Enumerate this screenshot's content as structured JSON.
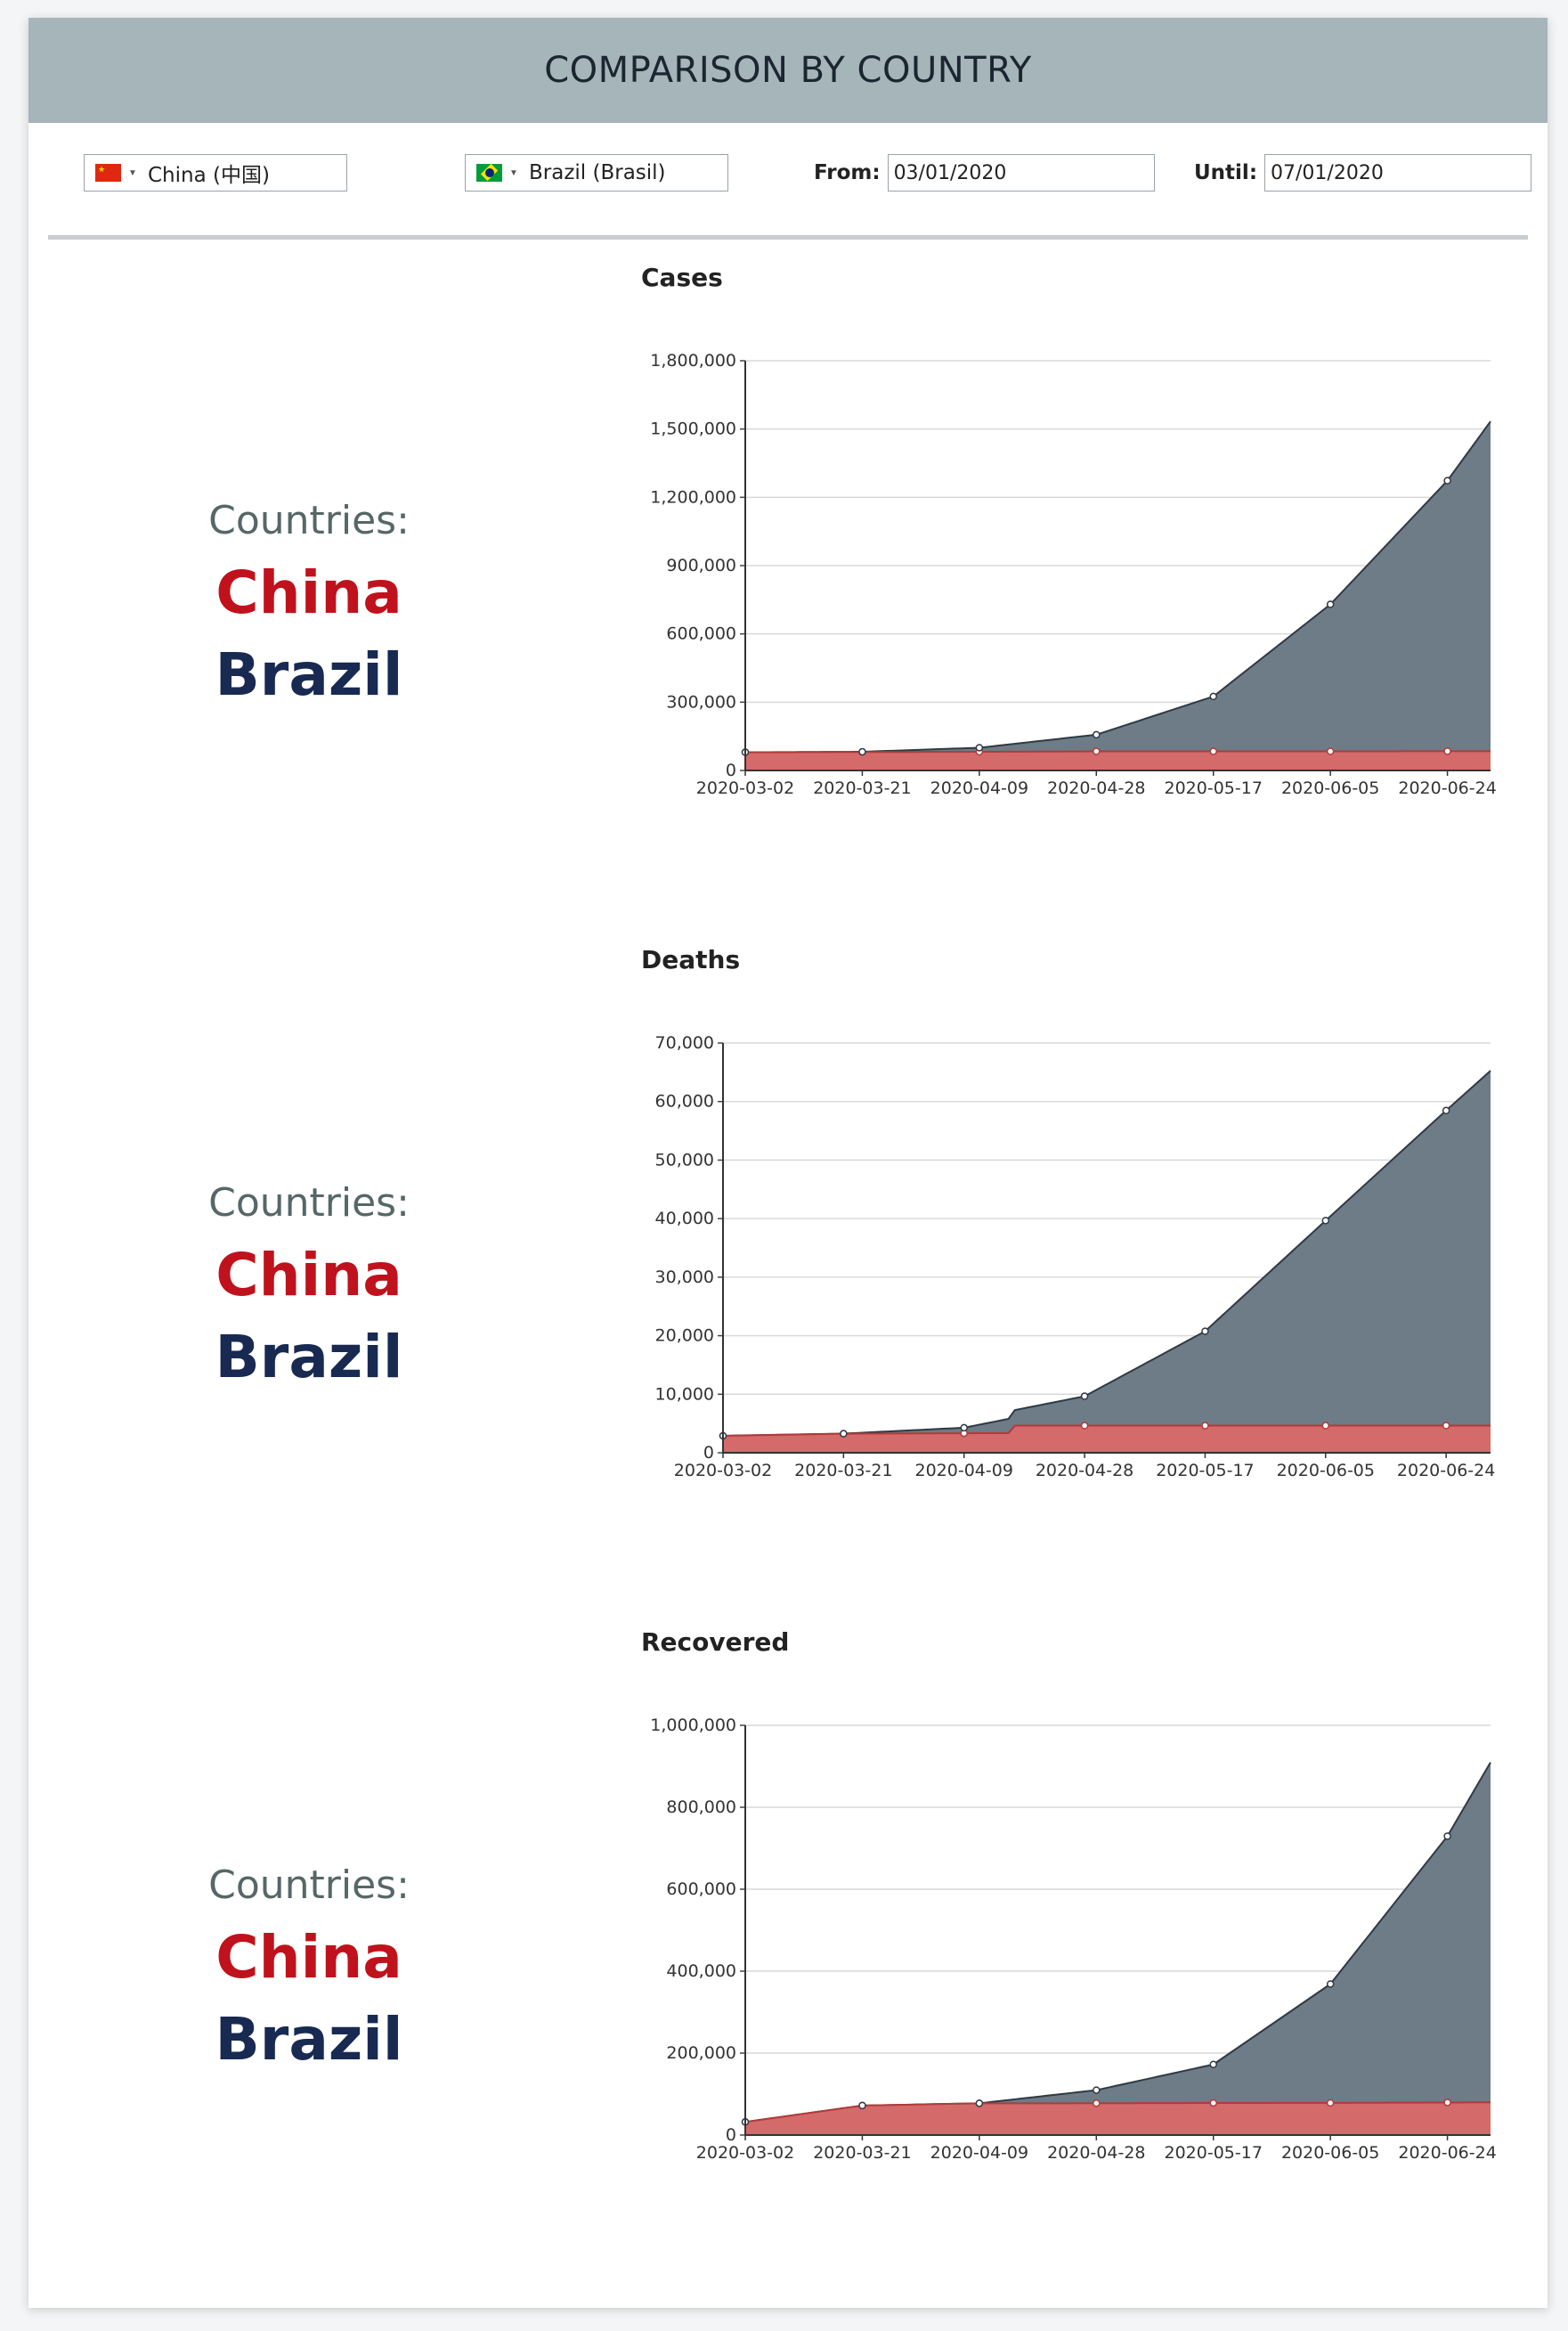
{
  "header": {
    "title": "COMPARISON BY COUNTRY"
  },
  "controls": {
    "country1": {
      "label": "China (中国)",
      "flag": "cn"
    },
    "country2": {
      "label": "Brazil (Brasil)",
      "flag": "br"
    },
    "from": {
      "label": "From:",
      "value": "03/01/2020"
    },
    "until": {
      "label": "Until:",
      "value": "07/01/2020"
    }
  },
  "colors": {
    "china": "#c0121c",
    "brazil": "#182a52",
    "china_fill": "#d46a6a",
    "brazil_fill": "#6a7985"
  },
  "sections": [
    {
      "countries_label": "Countries:",
      "country1": "China",
      "country2": "Brazil"
    },
    {
      "countries_label": "Countries:",
      "country1": "China",
      "country2": "Brazil"
    },
    {
      "countries_label": "Countries:",
      "country1": "China",
      "country2": "Brazil"
    }
  ],
  "chart_data": [
    {
      "type": "area",
      "title": "Cases",
      "xlabel": "",
      "ylabel": "",
      "x_ticks": [
        "2020-03-02",
        "2020-03-21",
        "2020-04-09",
        "2020-04-28",
        "2020-05-17",
        "2020-06-05",
        "2020-06-24"
      ],
      "x_start": "2020-03-02",
      "x_end": "2020-07-01",
      "ylim": [
        0,
        1800000
      ],
      "y_ticks": [
        0,
        300000,
        600000,
        900000,
        1200000,
        1500000,
        1800000
      ],
      "y_tick_labels": [
        "0",
        "300,000",
        "600,000",
        "900,000",
        "1,200,000",
        "1,500,000",
        "1,800,000"
      ],
      "grid": true,
      "stacked": true,
      "series": [
        {
          "name": "China",
          "color": "#d46a6a",
          "points": [
            [
              "2020-03-02",
              80000
            ],
            [
              "2020-03-21",
              81000
            ],
            [
              "2020-04-09",
              82000
            ],
            [
              "2020-04-28",
              84000
            ],
            [
              "2020-05-17",
              84000
            ],
            [
              "2020-06-05",
              84000
            ],
            [
              "2020-06-24",
              84600
            ],
            [
              "2020-07-01",
              84800
            ]
          ]
        },
        {
          "name": "Brazil",
          "color": "#6a7985",
          "points": [
            [
              "2020-03-02",
              2
            ],
            [
              "2020-03-21",
              1128
            ],
            [
              "2020-04-09",
              17857
            ],
            [
              "2020-04-28",
              73235
            ],
            [
              "2020-05-17",
              241080
            ],
            [
              "2020-06-05",
              645771
            ],
            [
              "2020-06-24",
              1188631
            ],
            [
              "2020-07-01",
              1448753
            ]
          ]
        }
      ]
    },
    {
      "type": "area",
      "title": "Deaths",
      "xlabel": "",
      "ylabel": "",
      "x_ticks": [
        "2020-03-02",
        "2020-03-21",
        "2020-04-09",
        "2020-04-28",
        "2020-05-17",
        "2020-06-05",
        "2020-06-24"
      ],
      "x_start": "2020-03-02",
      "x_end": "2020-07-01",
      "ylim": [
        0,
        70000
      ],
      "y_ticks": [
        0,
        10000,
        20000,
        30000,
        40000,
        50000,
        60000,
        70000
      ],
      "y_tick_labels": [
        "0",
        "10,000",
        "20,000",
        "30,000",
        "40,000",
        "50,000",
        "60,000",
        "70,000"
      ],
      "grid": true,
      "stacked": true,
      "series": [
        {
          "name": "China",
          "color": "#d46a6a",
          "points": [
            [
              "2020-03-02",
              2900
            ],
            [
              "2020-03-21",
              3255
            ],
            [
              "2020-04-09",
              3337
            ],
            [
              "2020-04-16",
              3342
            ],
            [
              "2020-04-17",
              4632
            ],
            [
              "2020-04-28",
              4637
            ],
            [
              "2020-05-17",
              4638
            ],
            [
              "2020-06-05",
              4638
            ],
            [
              "2020-06-24",
              4641
            ],
            [
              "2020-07-01",
              4641
            ]
          ]
        },
        {
          "name": "Brazil",
          "color": "#6a7985",
          "points": [
            [
              "2020-03-02",
              0
            ],
            [
              "2020-03-21",
              15
            ],
            [
              "2020-04-09",
              941
            ],
            [
              "2020-04-28",
              5017
            ],
            [
              "2020-05-17",
              16118
            ],
            [
              "2020-06-05",
              35026
            ],
            [
              "2020-06-24",
              53830
            ],
            [
              "2020-07-01",
              60632
            ]
          ]
        }
      ]
    },
    {
      "type": "area",
      "title": "Recovered",
      "xlabel": "",
      "ylabel": "",
      "x_ticks": [
        "2020-03-02",
        "2020-03-21",
        "2020-04-09",
        "2020-04-28",
        "2020-05-17",
        "2020-06-05",
        "2020-06-24"
      ],
      "x_start": "2020-03-02",
      "x_end": "2020-07-01",
      "ylim": [
        0,
        1000000
      ],
      "y_ticks": [
        0,
        200000,
        400000,
        600000,
        800000,
        1000000
      ],
      "y_tick_labels": [
        "0",
        "200,000",
        "400,000",
        "600,000",
        "800,000",
        "1,000,000"
      ],
      "grid": true,
      "stacked": true,
      "series": [
        {
          "name": "China",
          "color": "#d46a6a",
          "points": [
            [
              "2020-03-02",
              32000
            ],
            [
              "2020-03-21",
              72000
            ],
            [
              "2020-04-09",
              77500
            ],
            [
              "2020-04-28",
              77600
            ],
            [
              "2020-05-17",
              78300
            ],
            [
              "2020-06-05",
              78500
            ],
            [
              "2020-06-24",
              79400
            ],
            [
              "2020-07-01",
              79600
            ]
          ]
        },
        {
          "name": "Brazil",
          "color": "#6a7985",
          "points": [
            [
              "2020-03-02",
              0
            ],
            [
              "2020-03-21",
              0
            ],
            [
              "2020-04-09",
              0
            ],
            [
              "2020-04-28",
              32000
            ],
            [
              "2020-05-17",
              94000
            ],
            [
              "2020-06-05",
              290000
            ],
            [
              "2020-06-24",
              650000
            ],
            [
              "2020-07-01",
              830000
            ]
          ]
        }
      ]
    }
  ]
}
